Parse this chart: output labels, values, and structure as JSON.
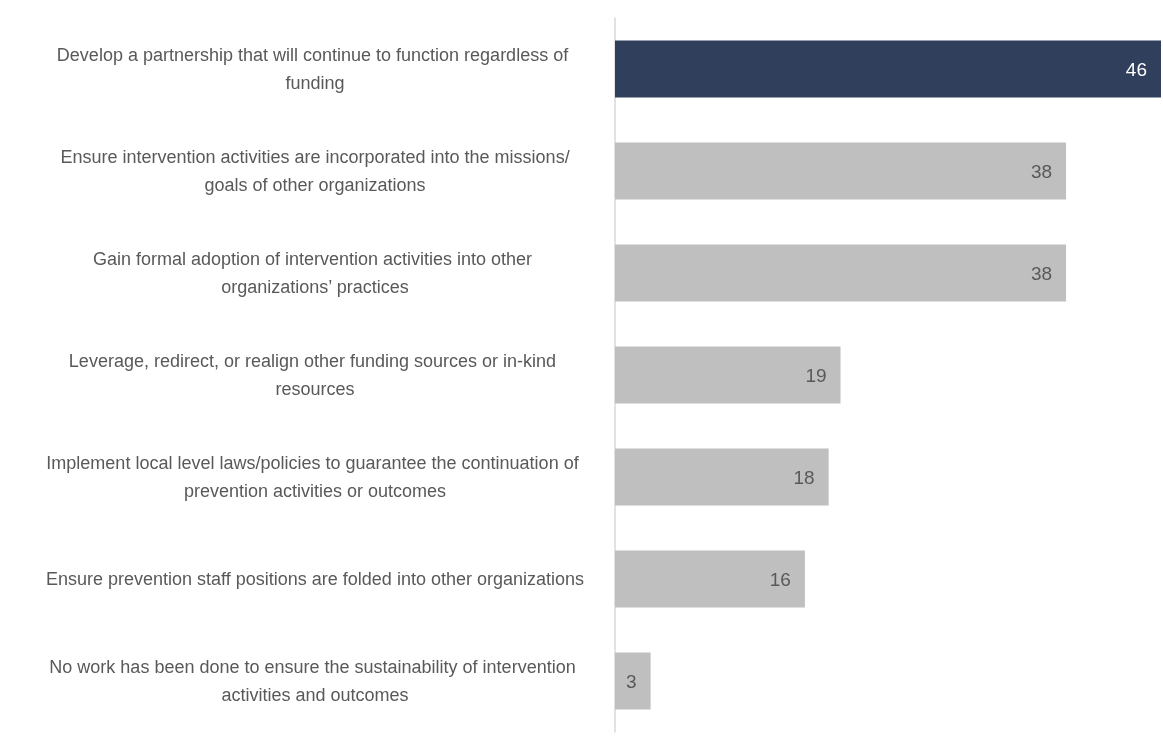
{
  "chart_data": {
    "type": "bar",
    "orientation": "horizontal",
    "categories": [
      "Develop a partnership that will continue to function regardless of funding",
      "Ensure intervention activities are incorporated into the missions/goals of other organizations",
      "Gain formal adoption of intervention activities into other organizations’ practices",
      "Leverage, redirect, or realign other funding sources or in-kind resources",
      "Implement local level laws/policies to guarantee the continuation of prevention activities or outcomes",
      "Ensure prevention staff positions are folded into other organizations",
      "No work has been done to ensure the sustainability of intervention activities and outcomes"
    ],
    "values": [
      46,
      38,
      38,
      19,
      18,
      16,
      3
    ],
    "colors": [
      "#303f5c",
      "#bfbfbf",
      "#bfbfbf",
      "#bfbfbf",
      "#bfbfbf",
      "#bfbfbf",
      "#bfbfbf"
    ],
    "data_labels": true
  }
}
